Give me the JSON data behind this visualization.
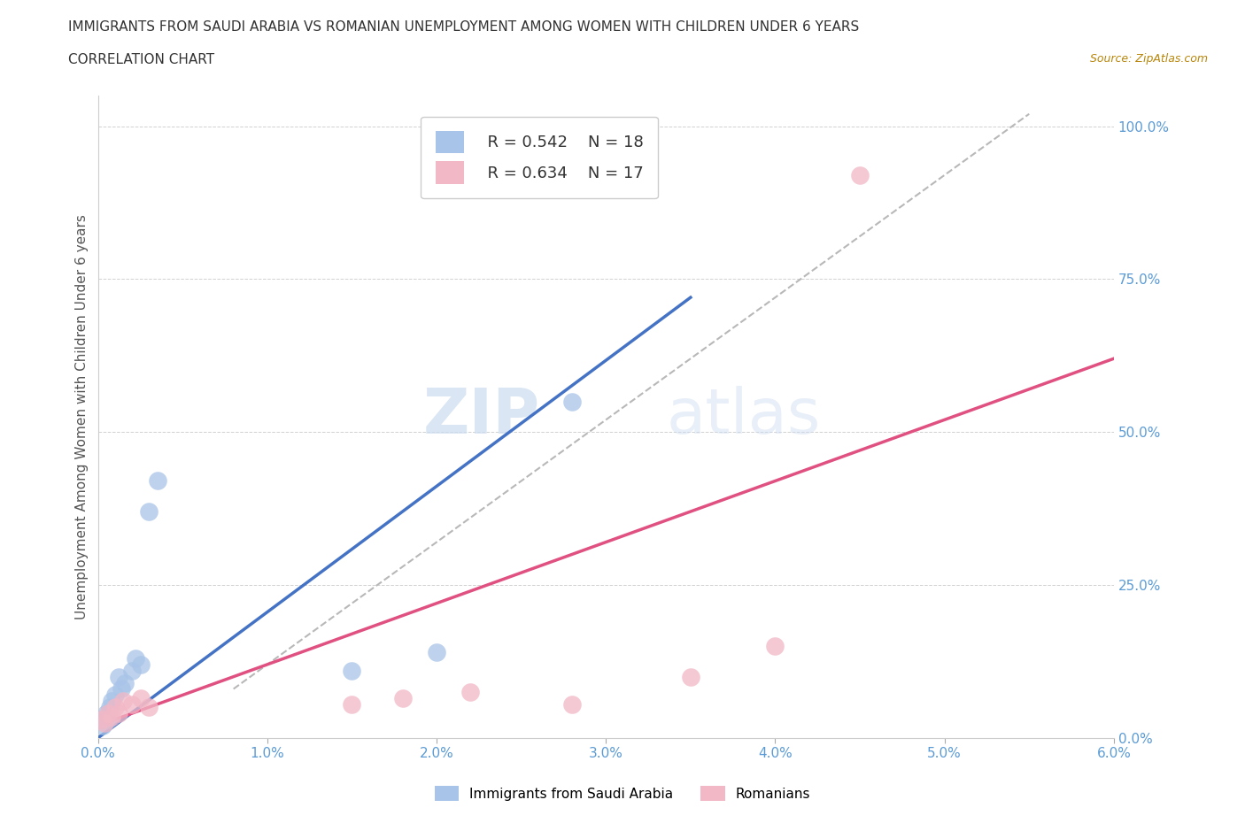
{
  "title_line1": "IMMIGRANTS FROM SAUDI ARABIA VS ROMANIAN UNEMPLOYMENT AMONG WOMEN WITH CHILDREN UNDER 6 YEARS",
  "title_line2": "CORRELATION CHART",
  "source_text": "Source: ZipAtlas.com",
  "ylabel": "Unemployment Among Women with Children Under 6 years",
  "legend_labels": [
    "Immigrants from Saudi Arabia",
    "Romanians"
  ],
  "legend_r": [
    "R = 0.542",
    "N = 18"
  ],
  "legend_n": [
    "R = 0.634",
    "N = 17"
  ],
  "blue_color": "#a8c4e8",
  "pink_color": "#f2b8c6",
  "trendline_blue": "#4472c4",
  "trendline_pink": "#e05080",
  "trendline_gray": "#b8b8b8",
  "xlim": [
    0.0,
    0.06
  ],
  "ylim": [
    0.0,
    1.05
  ],
  "xticks": [
    0.0,
    0.01,
    0.02,
    0.03,
    0.04,
    0.05,
    0.06
  ],
  "xtick_labels": [
    "0.0%",
    "1.0%",
    "2.0%",
    "3.0%",
    "4.0%",
    "5.0%",
    "6.0%"
  ],
  "yticks": [
    0.0,
    0.25,
    0.5,
    0.75,
    1.0
  ],
  "ytick_labels": [
    "0.0%",
    "25.0%",
    "50.0%",
    "75.0%",
    "100.0%"
  ],
  "blue_scatter_x": [
    0.0002,
    0.0003,
    0.0005,
    0.0006,
    0.0007,
    0.0008,
    0.001,
    0.0012,
    0.0014,
    0.0016,
    0.002,
    0.0022,
    0.0025,
    0.003,
    0.0035,
    0.015,
    0.02,
    0.028
  ],
  "blue_scatter_y": [
    0.03,
    0.02,
    0.04,
    0.03,
    0.05,
    0.06,
    0.07,
    0.1,
    0.08,
    0.09,
    0.11,
    0.13,
    0.12,
    0.37,
    0.42,
    0.11,
    0.14,
    0.55
  ],
  "pink_scatter_x": [
    0.0002,
    0.0004,
    0.0006,
    0.0008,
    0.001,
    0.0012,
    0.0015,
    0.002,
    0.0025,
    0.003,
    0.015,
    0.018,
    0.022,
    0.028,
    0.035,
    0.04,
    0.045
  ],
  "pink_scatter_y": [
    0.03,
    0.025,
    0.04,
    0.035,
    0.05,
    0.04,
    0.06,
    0.055,
    0.065,
    0.05,
    0.055,
    0.065,
    0.075,
    0.055,
    0.1,
    0.15,
    0.92
  ],
  "blue_trend_x": [
    0.0,
    0.035
  ],
  "blue_trend_y": [
    0.0,
    0.72
  ],
  "pink_trend_x": [
    0.0,
    0.06
  ],
  "pink_trend_y": [
    0.02,
    0.62
  ],
  "gray_trend_x": [
    0.008,
    0.055
  ],
  "gray_trend_y": [
    0.08,
    1.02
  ],
  "watermark_zip": "ZIP",
  "watermark_atlas": "atlas",
  "title_fontsize": 11,
  "subtitle_fontsize": 11,
  "source_fontsize": 9,
  "axis_label_fontsize": 11,
  "tick_fontsize": 11,
  "legend_fontsize": 13
}
